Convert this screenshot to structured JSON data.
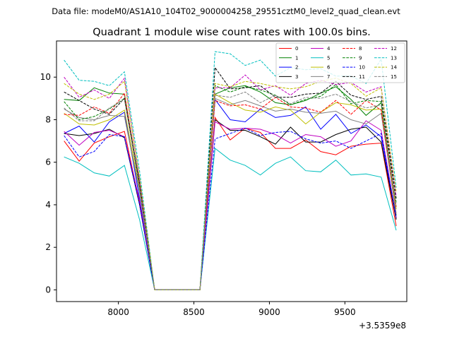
{
  "chart_data": {
    "type": "line",
    "suptitle": "Data file: modeM0/AS1A10_104T02_9000004258_29551cztM0_level2_quad_clean.evt",
    "title": "Quadrant 1 module wise count rates with 100.0s bins.",
    "xlabel": "",
    "ylabel": "",
    "x_offset_label": "+3.5359e8",
    "xlim": [
      7590,
      9910
    ],
    "ylim": [
      -0.55,
      11.7
    ],
    "x_ticks": [
      8000,
      8500,
      9000,
      9500
    ],
    "x_tick_labels": [
      "8000",
      "8500",
      "9000",
      "9500"
    ],
    "y_ticks": [
      0,
      2,
      4,
      6,
      8,
      10
    ],
    "y_tick_labels": [
      "0",
      "2",
      "4",
      "6",
      "8",
      "10"
    ],
    "grid": false,
    "legend_position": "top-right",
    "x": [
      7640,
      7740,
      7840,
      7940,
      8040,
      8140,
      8240,
      8340,
      8440,
      8540,
      8640,
      8740,
      8840,
      8940,
      9040,
      9140,
      9240,
      9340,
      9440,
      9540,
      9640,
      9740,
      9840
    ],
    "series": [
      {
        "name": "0",
        "color": "#ff0000",
        "dash": "solid",
        "values": [
          7.0,
          6.05,
          6.9,
          7.2,
          7.45,
          4.1,
          0,
          0,
          0,
          0,
          8.1,
          7.05,
          7.6,
          7.4,
          6.65,
          6.65,
          7.05,
          6.5,
          6.35,
          6.75,
          6.85,
          6.9,
          3.0
        ]
      },
      {
        "name": "1",
        "color": "#008000",
        "dash": "solid",
        "values": [
          8.95,
          8.9,
          9.5,
          9.25,
          9.2,
          5.0,
          0,
          0,
          0,
          0,
          9.2,
          9.5,
          9.6,
          9.3,
          8.8,
          8.7,
          8.9,
          9.25,
          9.55,
          8.95,
          8.2,
          8.8,
          3.5
        ]
      },
      {
        "name": "2",
        "color": "#0000ff",
        "dash": "solid",
        "values": [
          7.35,
          7.7,
          6.95,
          7.9,
          8.35,
          4.3,
          0,
          0,
          0,
          0,
          8.95,
          8.0,
          7.9,
          8.5,
          8.1,
          8.2,
          8.6,
          7.55,
          8.25,
          7.35,
          7.75,
          7.2,
          3.35
        ]
      },
      {
        "name": "3",
        "color": "#000000",
        "dash": "solid",
        "values": [
          7.35,
          7.25,
          7.35,
          7.55,
          7.15,
          4.0,
          0,
          0,
          0,
          0,
          8.0,
          7.5,
          7.5,
          7.2,
          6.85,
          7.65,
          6.95,
          6.95,
          7.3,
          7.55,
          7.65,
          6.95,
          3.3
        ]
      },
      {
        "name": "4",
        "color": "#c000c0",
        "dash": "solid",
        "values": [
          7.45,
          6.8,
          7.4,
          7.5,
          7.2,
          4.2,
          0,
          0,
          0,
          0,
          7.9,
          7.55,
          7.6,
          7.55,
          7.3,
          6.9,
          7.3,
          7.2,
          6.75,
          7.0,
          7.95,
          7.5,
          3.4
        ]
      },
      {
        "name": "5",
        "color": "#00bfbf",
        "dash": "solid",
        "values": [
          6.25,
          5.95,
          5.5,
          5.35,
          5.85,
          3.3,
          0,
          0,
          0,
          0,
          6.65,
          6.1,
          5.85,
          5.4,
          5.95,
          6.25,
          5.6,
          5.55,
          6.1,
          5.4,
          5.45,
          5.3,
          2.8
        ]
      },
      {
        "name": "6",
        "color": "#bfbf00",
        "dash": "solid",
        "values": [
          8.3,
          7.8,
          7.75,
          8.0,
          8.45,
          4.7,
          0,
          0,
          0,
          0,
          9.2,
          8.8,
          8.45,
          8.35,
          8.6,
          8.45,
          7.8,
          8.35,
          8.8,
          8.7,
          8.45,
          8.5,
          3.8
        ]
      },
      {
        "name": "7",
        "color": "#808080",
        "dash": "solid",
        "values": [
          8.5,
          8.1,
          8.0,
          8.2,
          8.15,
          4.6,
          0,
          0,
          0,
          0,
          9.0,
          8.7,
          8.9,
          8.65,
          8.4,
          8.5,
          8.35,
          8.3,
          8.4,
          8.0,
          7.8,
          8.3,
          3.6
        ]
      },
      {
        "name": "8",
        "color": "#ff0000",
        "dash": "dashed",
        "values": [
          8.25,
          8.2,
          8.6,
          8.3,
          9.25,
          4.9,
          0,
          0,
          0,
          0,
          8.9,
          8.65,
          8.7,
          8.5,
          9.05,
          8.6,
          8.55,
          8.35,
          8.9,
          8.25,
          8.9,
          8.45,
          3.9
        ]
      },
      {
        "name": "9",
        "color": "#008000",
        "dash": "dashed",
        "values": [
          8.85,
          8.0,
          8.15,
          8.5,
          9.0,
          4.8,
          0,
          0,
          0,
          0,
          9.6,
          9.3,
          9.55,
          9.4,
          9.15,
          8.7,
          8.95,
          9.1,
          9.65,
          8.75,
          8.9,
          8.85,
          4.1
        ]
      },
      {
        "name": "10",
        "color": "#0000ff",
        "dash": "dashed",
        "values": [
          7.25,
          6.25,
          6.5,
          7.3,
          7.2,
          4.0,
          0,
          0,
          0,
          0,
          7.1,
          7.35,
          7.6,
          7.25,
          7.4,
          7.45,
          7.1,
          6.9,
          7.0,
          6.65,
          7.0,
          7.35,
          3.4
        ]
      },
      {
        "name": "11",
        "color": "#000000",
        "dash": "dashed",
        "values": [
          9.3,
          8.9,
          8.5,
          8.25,
          9.0,
          5.0,
          0,
          0,
          0,
          0,
          10.45,
          9.45,
          9.5,
          9.6,
          9.05,
          9.05,
          9.2,
          9.25,
          9.8,
          9.15,
          8.95,
          9.1,
          4.3
        ]
      },
      {
        "name": "12",
        "color": "#c000c0",
        "dash": "dashed",
        "values": [
          10.0,
          9.05,
          9.4,
          9.0,
          9.95,
          5.2,
          0,
          0,
          0,
          0,
          9.5,
          9.5,
          10.1,
          9.4,
          9.6,
          9.15,
          9.7,
          9.85,
          9.65,
          9.75,
          9.3,
          9.55,
          4.4
        ]
      },
      {
        "name": "13",
        "color": "#00bfbf",
        "dash": "dashed",
        "values": [
          10.8,
          9.85,
          9.8,
          9.6,
          10.25,
          5.6,
          0,
          0,
          0,
          0,
          11.2,
          11.1,
          10.55,
          10.8,
          10.05,
          10.45,
          10.35,
          10.4,
          10.05,
          10.05,
          9.7,
          10.85,
          4.8
        ]
      },
      {
        "name": "14",
        "color": "#bfbf00",
        "dash": "dashed",
        "values": [
          9.7,
          9.2,
          8.95,
          9.2,
          9.8,
          5.3,
          0,
          0,
          0,
          0,
          9.7,
          9.55,
          9.8,
          9.7,
          9.55,
          9.45,
          9.55,
          9.8,
          9.95,
          9.7,
          9.1,
          9.5,
          4.6
        ]
      },
      {
        "name": "15",
        "color": "#808080",
        "dash": "dashed",
        "values": [
          8.55,
          7.95,
          7.95,
          8.55,
          8.95,
          4.85,
          0,
          0,
          0,
          0,
          9.15,
          9.05,
          9.3,
          8.8,
          9.15,
          8.75,
          9.05,
          9.0,
          9.2,
          8.85,
          8.55,
          8.7,
          3.95
        ]
      }
    ]
  }
}
